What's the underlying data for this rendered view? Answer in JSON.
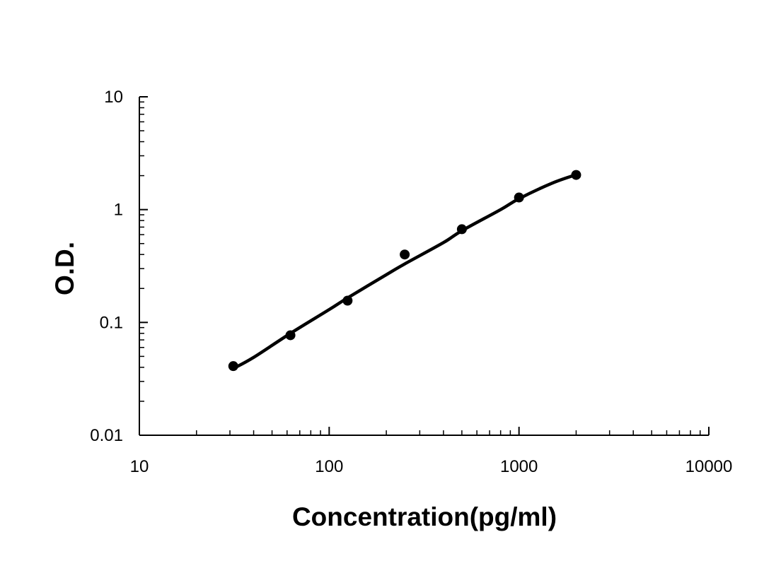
{
  "chart_data": {
    "type": "scatter",
    "title": "",
    "xlabel": "Concentration(pg/ml)",
    "ylabel": "O.D.",
    "x_scale": "log",
    "y_scale": "log",
    "xlim": [
      10,
      10000
    ],
    "ylim": [
      0.01,
      10
    ],
    "x_tick_labels": [
      "10",
      "100",
      "1000",
      "10000"
    ],
    "y_tick_labels": [
      "0.01",
      "0.1",
      "1",
      "10"
    ],
    "x_tick_values": [
      10,
      100,
      1000,
      10000
    ],
    "y_tick_values": [
      0.01,
      0.1,
      1,
      10
    ],
    "grid": false,
    "legend": "none",
    "series": [
      {
        "mode": "markers",
        "color": "#000000",
        "x": [
          31.25,
          62.5,
          125,
          250,
          500,
          1000,
          2000
        ],
        "y": [
          0.041,
          0.077,
          0.156,
          0.4,
          0.67,
          1.28,
          2.03
        ]
      },
      {
        "mode": "line",
        "color": "#000000",
        "x": [
          31.25,
          40,
          62.5,
          100,
          125,
          200,
          250,
          400,
          500,
          800,
          1000,
          1500,
          2000
        ],
        "y": [
          0.039,
          0.049,
          0.08,
          0.13,
          0.165,
          0.265,
          0.33,
          0.51,
          0.65,
          1.0,
          1.25,
          1.72,
          2.04
        ]
      }
    ]
  }
}
